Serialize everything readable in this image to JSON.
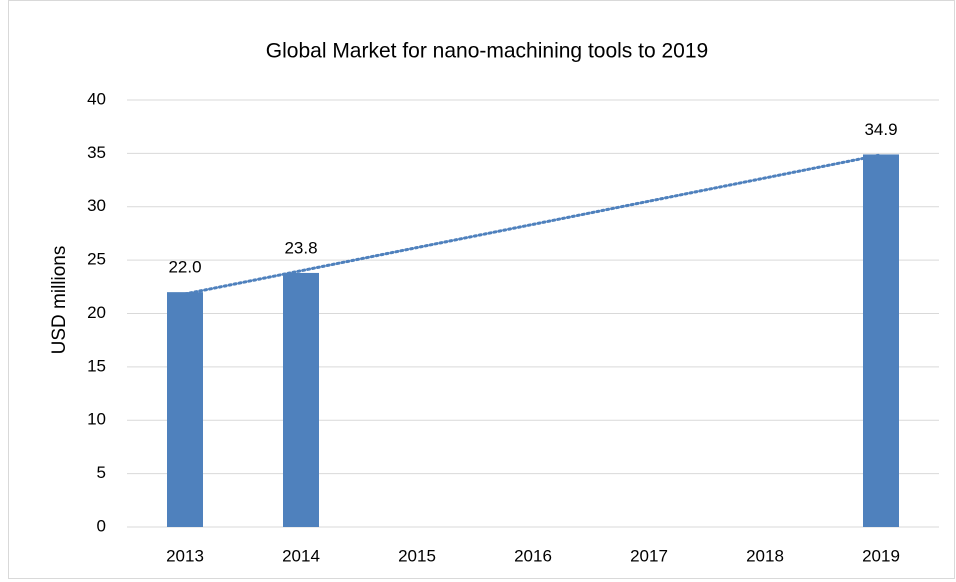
{
  "chart_data": {
    "type": "bar",
    "title": "Global Market for nano-machining tools to 2019",
    "y_label": "USD millions",
    "categories": [
      "2013",
      "2014",
      "2015",
      "2016",
      "2017",
      "2018",
      "2019"
    ],
    "values": [
      22.0,
      23.8,
      null,
      null,
      null,
      null,
      34.9
    ],
    "value_labels": [
      "22.0",
      "23.8",
      null,
      null,
      null,
      null,
      "34.9"
    ],
    "color": "#4f81bd",
    "ylim": [
      0,
      40
    ],
    "yticks": [
      0,
      5,
      10,
      15,
      20,
      25,
      30,
      35,
      40
    ],
    "grid": true,
    "trendline": "linear"
  }
}
